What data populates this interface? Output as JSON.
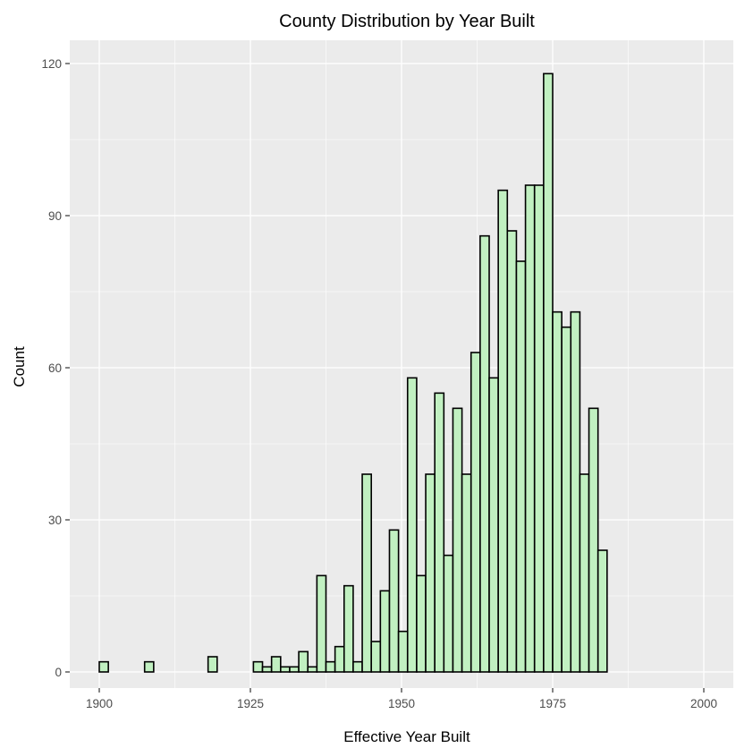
{
  "chart_data": {
    "type": "bar",
    "title": "County Distribution by Year Built",
    "xlabel": "Effective Year Built",
    "ylabel": "Count",
    "bin_width": 1.5,
    "bins_start": 1900,
    "values": [
      2,
      0,
      0,
      0,
      0,
      2,
      0,
      0,
      0,
      0,
      0,
      0,
      3,
      0,
      0,
      0,
      0,
      2,
      1,
      3,
      1,
      1,
      4,
      1,
      19,
      2,
      5,
      17,
      2,
      39,
      6,
      16,
      28,
      8,
      58,
      19,
      39,
      55,
      23,
      52,
      39,
      63,
      86,
      58,
      95,
      87,
      81,
      96,
      96,
      118,
      71,
      68,
      71,
      39,
      52,
      24
    ],
    "xlim": [
      1900,
      2003
    ],
    "ylim": [
      0,
      120
    ],
    "x_ticks": [
      1900,
      1925,
      1950,
      1975,
      2000
    ],
    "y_ticks": [
      0,
      30,
      60,
      90,
      120
    ],
    "grid": true,
    "colors": {
      "panel": "#ebebeb",
      "bar_fill": "#c1f0c1",
      "bar_stroke": "#000000"
    }
  }
}
